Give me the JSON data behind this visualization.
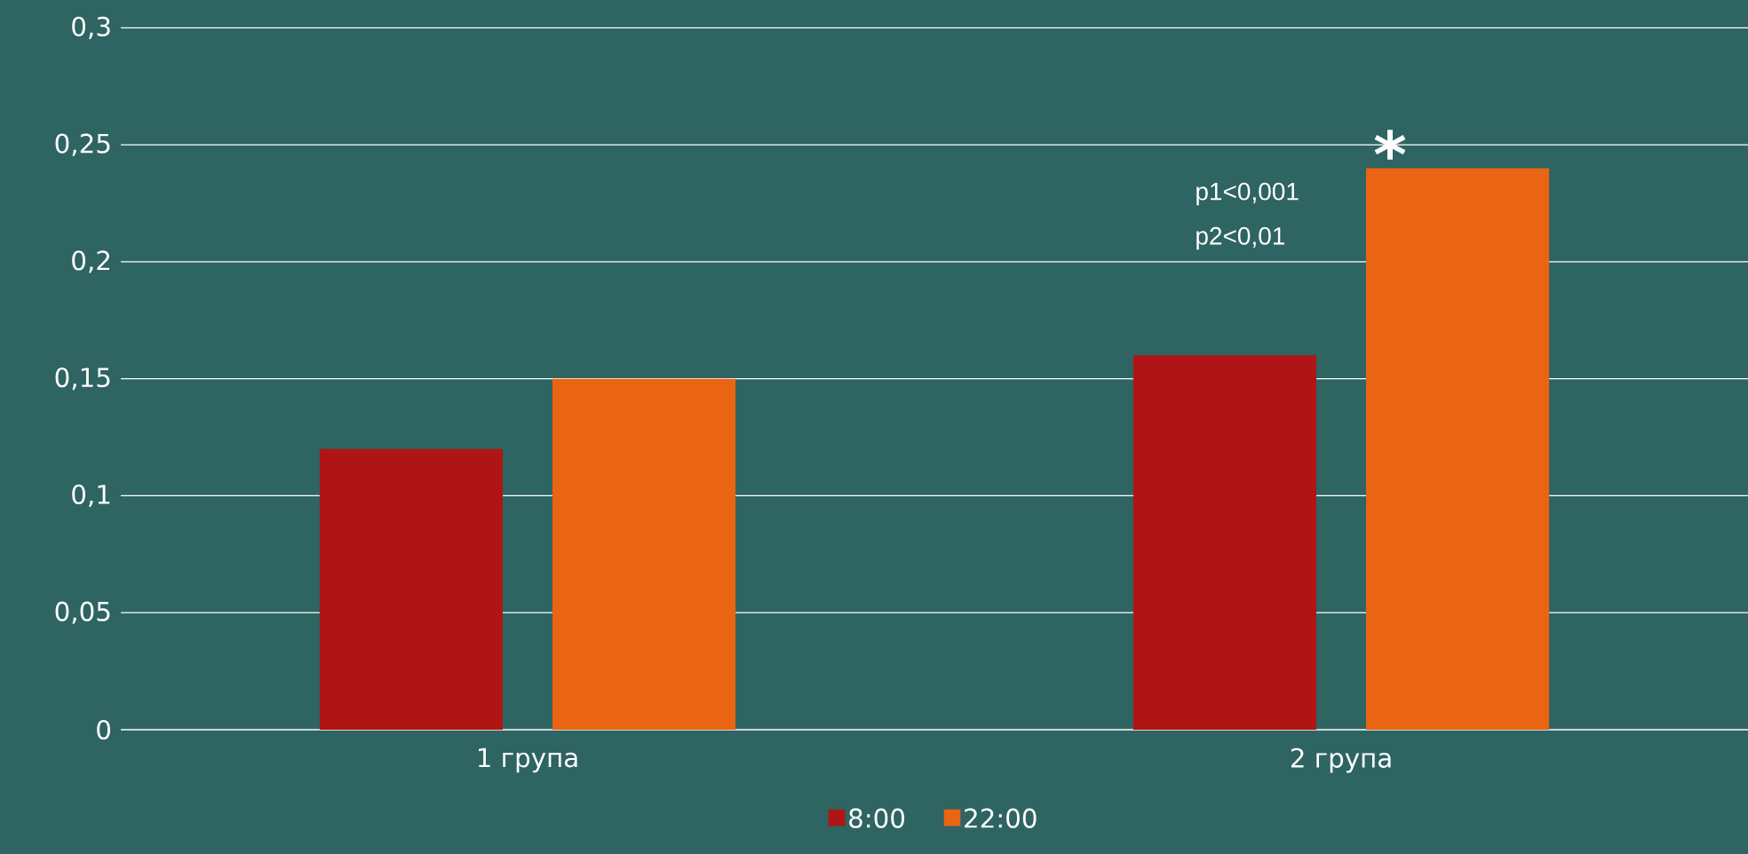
{
  "chart_data": {
    "type": "bar",
    "categories": [
      "1 група",
      "2 група"
    ],
    "series": [
      {
        "name": "8:00",
        "color": "#b01515",
        "values": [
          0.12,
          0.16
        ]
      },
      {
        "name": "22:00",
        "color": "#e96413",
        "values": [
          0.15,
          0.24
        ]
      }
    ],
    "ylim": [
      0,
      0.3
    ],
    "yticks": [
      {
        "value": 0,
        "label": "0"
      },
      {
        "value": 0.05,
        "label": "0,05"
      },
      {
        "value": 0.1,
        "label": "0,1"
      },
      {
        "value": 0.15,
        "label": "0,15"
      },
      {
        "value": 0.2,
        "label": "0,2"
      },
      {
        "value": 0.25,
        "label": "0,25"
      },
      {
        "value": 0.3,
        "label": "0,3"
      }
    ],
    "grid": "y",
    "legend": "bottom",
    "annotations": [
      "*",
      "p1<0,001",
      "p2<0,01"
    ]
  }
}
